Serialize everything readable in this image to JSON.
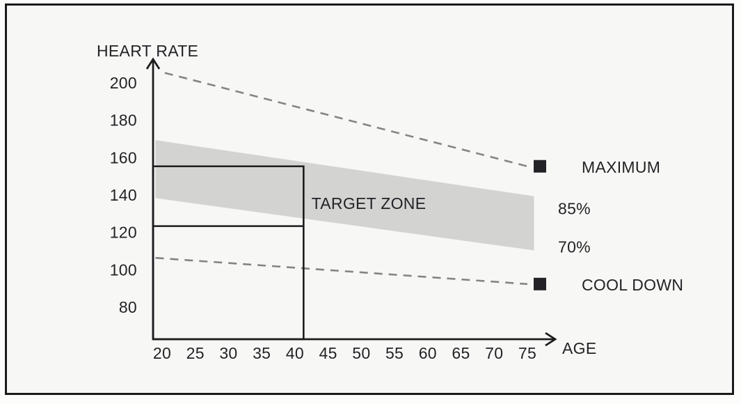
{
  "chart": {
    "heading": "HEART RATE",
    "colors": {
      "background": "#f7f7f5",
      "frame_border": "#1b1b1d",
      "axis": "#1d1d1f",
      "text": "#232327",
      "band": "#d3d3d2",
      "dashed_line": "#848484",
      "marker": "#232327",
      "box_stroke": "#1d1d1f"
    }
  },
  "chart_data": {
    "type": "area",
    "title": "",
    "xlabel": "AGE",
    "ylabel": "HEART RATE",
    "x_ticks": [
      20,
      25,
      30,
      35,
      40,
      45,
      50,
      55,
      60,
      65,
      70,
      75
    ],
    "y_ticks": [
      80,
      100,
      120,
      140,
      160,
      180,
      200
    ],
    "xlim": [
      18.6,
      79
    ],
    "ylim": [
      62,
      215
    ],
    "grid": false,
    "legend_position": "right",
    "band": {
      "name": "TARGET ZONE",
      "x": [
        19,
        76
      ],
      "upper_hr": [
        169,
        139
      ],
      "upper_label": "85%",
      "lower_hr": [
        138,
        110
      ],
      "lower_label": "70%"
    },
    "lines": [
      {
        "name": "MAXIMUM",
        "style": "dashed",
        "x": [
          20.4,
          75
        ],
        "y": [
          205,
          155
        ]
      },
      {
        "name": "COOL DOWN",
        "style": "dashed",
        "x": [
          19,
          75
        ],
        "y": [
          106,
          92
        ]
      }
    ],
    "highlight_box": {
      "age_start": 20,
      "age_end": 41.3,
      "hr_top": 155,
      "hr_mid": 123
    }
  }
}
